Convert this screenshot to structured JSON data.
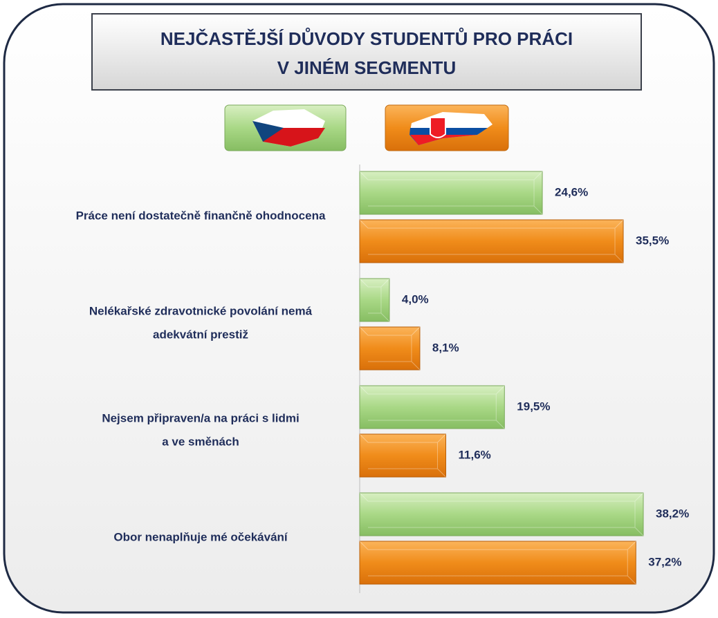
{
  "chart_data": {
    "type": "hbar",
    "title": [
      "NEJČASTĚJŠÍ DŮVODY STUDENTŮ PRO PRÁCI",
      "V JINÉM SEGMENTU"
    ],
    "categories": [
      [
        "Práce není dostatečně finančně ohodnocena"
      ],
      [
        "Nelékařské zdravotnické povolání nemá",
        "adekvátní prestiž"
      ],
      [
        "Nejsem připraven/a na práci s lidmi",
        "a ve směnách"
      ],
      [
        "Obor nenaplňuje mé očekávání"
      ]
    ],
    "series": [
      {
        "color": "#9dd07a",
        "values": [
          24.6,
          4.0,
          19.5,
          38.2
        ],
        "value_labels": [
          "24,6%",
          "4,0%",
          "19,5%",
          "38,2%"
        ]
      },
      {
        "color": "#f08c1a",
        "values": [
          35.5,
          8.1,
          11.6,
          37.2
        ],
        "value_labels": [
          "35,5%",
          "8,1%",
          "11,6%",
          "37,2%"
        ]
      }
    ]
  }
}
